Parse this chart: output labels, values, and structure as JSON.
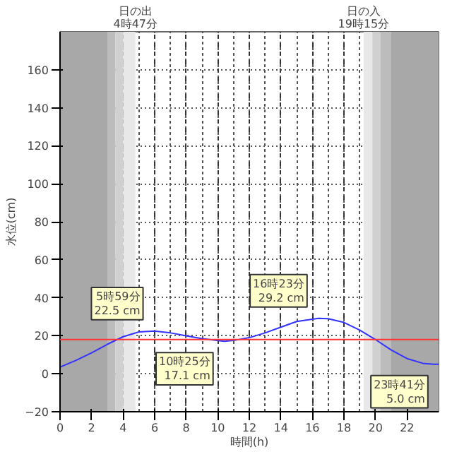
{
  "chart_data": {
    "type": "line",
    "xlabel": "時間(h)",
    "ylabel": "水位(cm)",
    "x": [
      0,
      1,
      2,
      3,
      4,
      5,
      5.98,
      7,
      8,
      9,
      10.42,
      11,
      12,
      13,
      14,
      15,
      16.38,
      17,
      18,
      19,
      20,
      21,
      22,
      23,
      23.68,
      24
    ],
    "series": [
      {
        "color": "#3333ff",
        "values": [
          3.5,
          7,
          11,
          15.5,
          19.5,
          22,
          22.5,
          21.5,
          20,
          18.5,
          17.1,
          17.5,
          19,
          21.5,
          24.5,
          27.5,
          29.2,
          29,
          27,
          23,
          18,
          12.5,
          8,
          5.5,
          5.0,
          5
        ]
      }
    ],
    "xlim": [
      0,
      24
    ],
    "xticks": [
      0,
      2,
      4,
      6,
      8,
      10,
      12,
      14,
      16,
      18,
      20,
      22
    ],
    "ylim": [
      -20,
      180
    ],
    "yticks": [
      -20,
      0,
      20,
      40,
      60,
      80,
      100,
      120,
      140,
      160
    ],
    "grid": true,
    "marker": "none",
    "line_style": "solid",
    "ref_lines": [
      {
        "axis": "y",
        "value": 18,
        "color": "#ff3333"
      }
    ],
    "bands": [
      {
        "axis": "x",
        "from": 0,
        "to": 3,
        "color": "#a8a8a8"
      },
      {
        "axis": "x",
        "from": 3,
        "to": 3.5,
        "color": "#bcbcbc"
      },
      {
        "axis": "x",
        "from": 3.5,
        "to": 4,
        "color": "#d0d0d0"
      },
      {
        "axis": "x",
        "from": 4,
        "to": 4.78,
        "color": "#e8e8e8",
        "label": "日の出\n4時47分"
      },
      {
        "axis": "x",
        "from": 19.25,
        "to": 19.8,
        "color": "#e8e8e8",
        "label": "日の入\n19時15分"
      },
      {
        "axis": "x",
        "from": 19.8,
        "to": 20.3,
        "color": "#d0d0d0"
      },
      {
        "axis": "x",
        "from": 20.3,
        "to": 21,
        "color": "#bcbcbc"
      },
      {
        "axis": "x",
        "from": 21,
        "to": 24,
        "color": "#a8a8a8"
      }
    ],
    "annotations": [
      {
        "text": "5時59分\n22.5 cm",
        "x": 5.98,
        "y": 22.5
      },
      {
        "text": "10時25分\n17.1 cm",
        "x": 10.42,
        "y": 17.1
      },
      {
        "text": "16時23分\n29.2 cm",
        "x": 16.38,
        "y": 29.2
      },
      {
        "text": "23時41分\n5.0 cm",
        "x": 23.68,
        "y": 5.0
      }
    ]
  }
}
